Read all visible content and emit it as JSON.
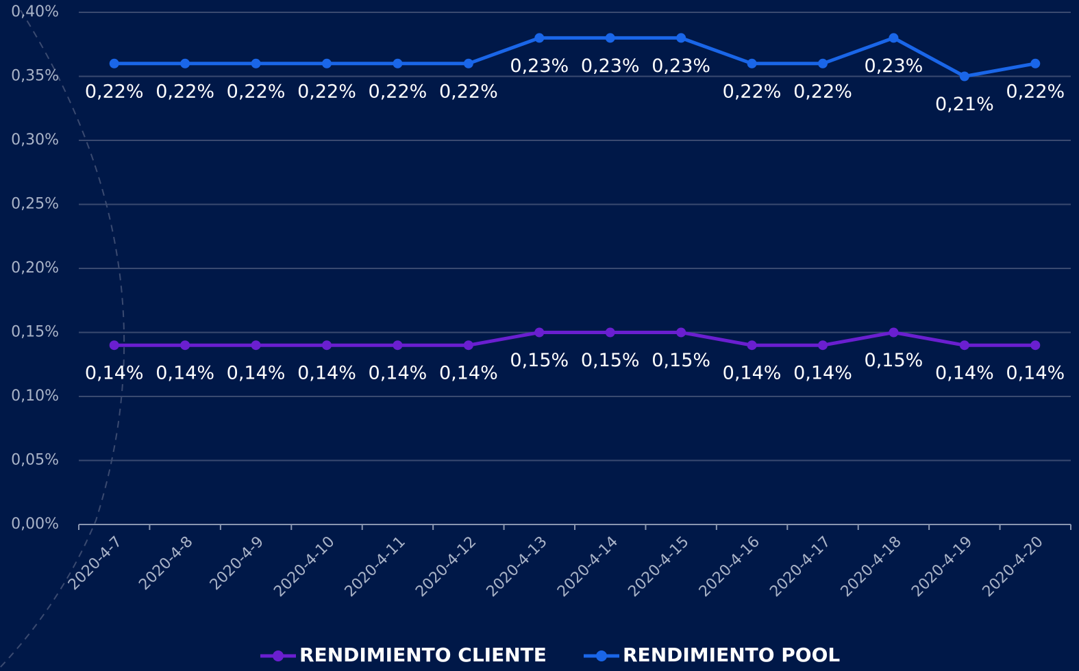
{
  "chart_data": {
    "type": "line",
    "categories": [
      "2020-4-7",
      "2020-4-8",
      "2020-4-9",
      "2020-4-10",
      "2020-4-11",
      "2020-4-12",
      "2020-4-13",
      "2020-4-14",
      "2020-4-15",
      "2020-4-16",
      "2020-4-17",
      "2020-4-18",
      "2020-4-19",
      "2020-4-20"
    ],
    "series": [
      {
        "name": "RENDIMIENTO CLIENTE",
        "color": "#6a1fd0",
        "values": [
          0.14,
          0.14,
          0.14,
          0.14,
          0.14,
          0.14,
          0.15,
          0.15,
          0.15,
          0.14,
          0.14,
          0.15,
          0.14,
          0.14
        ],
        "labels": [
          "0,14%",
          "0,14%",
          "0,14%",
          "0,14%",
          "0,14%",
          "0,14%",
          "0,15%",
          "0,15%",
          "0,15%",
          "0,14%",
          "0,14%",
          "0,15%",
          "0,14%",
          "0,14%"
        ]
      },
      {
        "name": "RENDIMIENTO POOL",
        "color": "#1a66e8",
        "values": [
          0.36,
          0.36,
          0.36,
          0.36,
          0.36,
          0.36,
          0.38,
          0.38,
          0.38,
          0.36,
          0.36,
          0.38,
          0.35,
          0.36
        ],
        "labels": [
          "0,22%",
          "0,22%",
          "0,22%",
          "0,22%",
          "0,22%",
          "0,22%",
          "0,23%",
          "0,23%",
          "0,23%",
          "0,22%",
          "0,22%",
          "0,23%",
          "0,21%",
          "0,22%"
        ]
      }
    ],
    "ylim": [
      0,
      0.4
    ],
    "yticks": [
      {
        "value": 0,
        "label": "0,00%"
      },
      {
        "value": 0.05,
        "label": "0,05%"
      },
      {
        "value": 0.1,
        "label": "0,10%"
      },
      {
        "value": 0.15,
        "label": "0,15%"
      },
      {
        "value": 0.2,
        "label": "0,20%"
      },
      {
        "value": 0.25,
        "label": "0,25%"
      },
      {
        "value": 0.3,
        "label": "0,30%"
      },
      {
        "value": 0.35,
        "label": "0,35%"
      },
      {
        "value": 0.4,
        "label": "0,40%"
      }
    ],
    "grid": true,
    "legend": "bottom"
  }
}
